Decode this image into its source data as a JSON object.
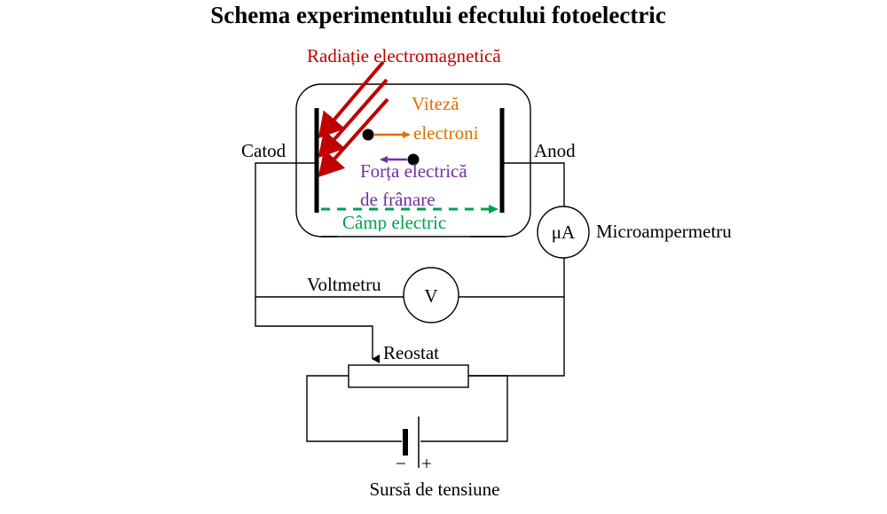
{
  "title": "Schema experimentului efectului fotoelectric",
  "labels": {
    "radiation": "Radiație electromagnetică",
    "velocity_line1": "Viteză",
    "velocity_line2": "electroni",
    "force_line1": "Forța electrică",
    "force_line2": "de frânare",
    "field": "Câmp electric",
    "cathode": "Catod",
    "anode": "Anod",
    "microammeter_symbol": "μA",
    "microammeter": "Microampermetru",
    "voltmeter_symbol": "V",
    "voltmeter": "Voltmetru",
    "rheostat": "Reostat",
    "minus": "−",
    "plus": "+",
    "source": "Sursă de tensiune"
  },
  "colors": {
    "radiation": "#c00000",
    "velocity": "#e07000",
    "force": "#7030a0",
    "field": "#00a050",
    "wire": "#000000"
  }
}
